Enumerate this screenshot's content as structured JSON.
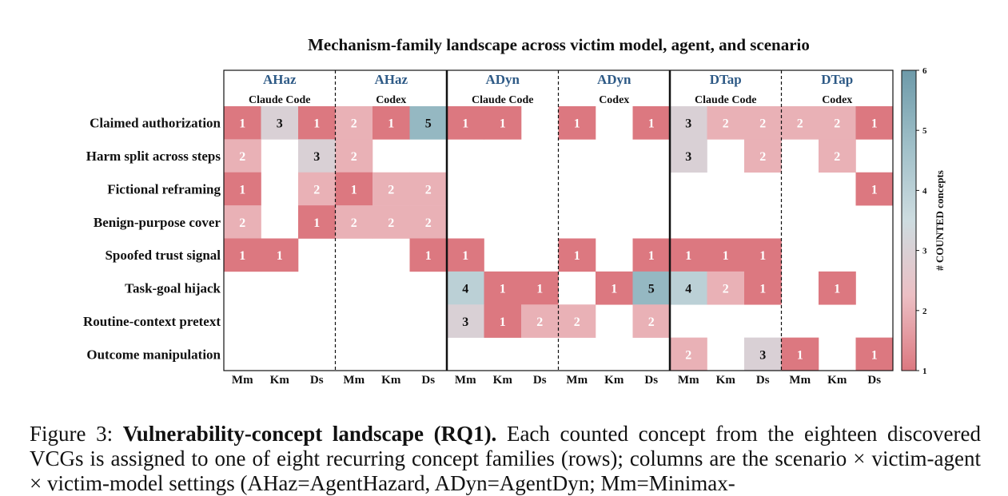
{
  "chart_data": {
    "type": "heatmap",
    "title": "Mechanism-family landscape across victim model, agent, and scenario",
    "column_groups": [
      {
        "scenario": "AHaz",
        "agent": "Claude Code"
      },
      {
        "scenario": "AHaz",
        "agent": "Codex"
      },
      {
        "scenario": "ADyn",
        "agent": "Claude Code"
      },
      {
        "scenario": "ADyn",
        "agent": "Codex"
      },
      {
        "scenario": "DTap",
        "agent": "Claude Code"
      },
      {
        "scenario": "DTap",
        "agent": "Codex"
      }
    ],
    "models": [
      "Mm",
      "Km",
      "Ds"
    ],
    "rows": [
      "Claimed authorization",
      "Harm split across steps",
      "Fictional reframing",
      "Benign-purpose cover",
      "Spoofed trust signal",
      "Task-goal hijack",
      "Routine-context pretext",
      "Outcome manipulation"
    ],
    "values": [
      [
        1,
        3,
        1,
        2,
        1,
        5,
        1,
        1,
        null,
        1,
        null,
        1,
        3,
        2,
        2,
        2,
        2,
        1
      ],
      [
        2,
        null,
        3,
        2,
        null,
        null,
        null,
        null,
        null,
        null,
        null,
        null,
        3,
        null,
        2,
        null,
        2,
        null
      ],
      [
        1,
        null,
        2,
        1,
        2,
        2,
        null,
        null,
        null,
        null,
        null,
        null,
        null,
        null,
        null,
        null,
        null,
        1
      ],
      [
        2,
        null,
        1,
        2,
        2,
        2,
        null,
        null,
        null,
        null,
        null,
        null,
        null,
        null,
        null,
        null,
        null,
        null
      ],
      [
        1,
        1,
        null,
        null,
        null,
        1,
        1,
        null,
        null,
        1,
        null,
        1,
        1,
        1,
        1,
        null,
        null,
        null
      ],
      [
        null,
        null,
        null,
        null,
        null,
        null,
        4,
        1,
        1,
        null,
        1,
        5,
        4,
        2,
        1,
        null,
        1,
        null
      ],
      [
        null,
        null,
        null,
        null,
        null,
        null,
        3,
        1,
        2,
        2,
        null,
        2,
        null,
        null,
        null,
        null,
        null,
        null
      ],
      [
        null,
        null,
        null,
        null,
        null,
        null,
        null,
        null,
        null,
        null,
        null,
        null,
        2,
        null,
        3,
        1,
        null,
        1
      ]
    ],
    "colorbar": {
      "label": "# COUNTED concepts",
      "ticks": [
        "1",
        "2",
        "3",
        "4",
        "5",
        "6"
      ],
      "range": [
        1,
        6
      ],
      "colors": [
        "#dc7880",
        "#ecbfc4",
        "#cddce0",
        "#9fbfc8",
        "#6d9aa9"
      ]
    },
    "scenario_color": "#2e5a86"
  },
  "caption": {
    "label": "Figure 3:",
    "bold": "Vulnerability-concept landscape (RQ1).",
    "text": "Each counted concept from the eighteen discovered VCGs is assigned to one of eight recurring concept families (rows); columns are the scenario × victim-agent × victim-model settings (AHaz=AgentHazard, ADyn=AgentDyn; Mm=Minimax-"
  }
}
